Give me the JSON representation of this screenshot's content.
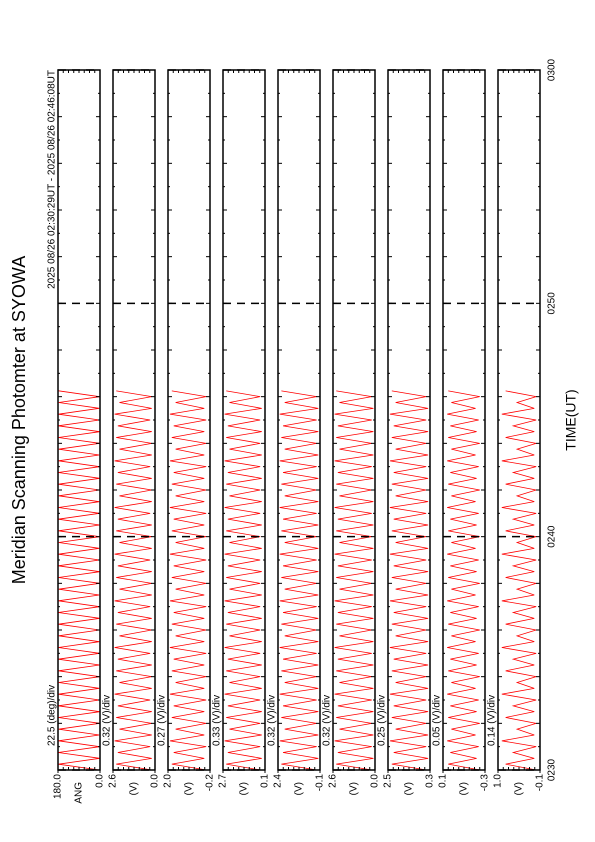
{
  "chart_data": {
    "type": "line",
    "title": "Meridian Scanning Photomter at SYOWA",
    "period": "2025 08/26 02:30:29UT - 2025 08/26 02:46:08UT",
    "x_label": "TIME(UT)",
    "xlim": [
      0,
      30
    ],
    "xticks": [
      {
        "value": 0,
        "label": "0230"
      },
      {
        "value": 10,
        "label": "0240"
      },
      {
        "value": 20,
        "label": "0250"
      },
      {
        "value": 30,
        "label": "0300"
      }
    ],
    "x": [
      0,
      0.25,
      0.5,
      0.75,
      1,
      1.25,
      1.5,
      1.75,
      2,
      2.25,
      2.5,
      2.75,
      3,
      3.25,
      3.5,
      3.75,
      4,
      4.25,
      4.5,
      4.75,
      5,
      5.25,
      5.5,
      5.75,
      6,
      6.25,
      6.5,
      6.75,
      7,
      7.25,
      7.5,
      7.75,
      8,
      8.25,
      8.5,
      8.75,
      9,
      9.25,
      9.5,
      9.75,
      10,
      10.25,
      10.5,
      10.75,
      11,
      11.25,
      11.5,
      11.75,
      12,
      12.25,
      12.5,
      12.75,
      13,
      13.25,
      13.5,
      13.75,
      14,
      14.25,
      14.5,
      14.75,
      15,
      15.25,
      15.5,
      15.75,
      16,
      16.25
    ],
    "series": [
      {
        "label": "ANG",
        "scale": "22.5 (deg)/div",
        "color": "#ff0000",
        "ylim": [
          0,
          180
        ],
        "yticks": [
          {
            "value": 180,
            "label": "180.0"
          },
          {
            "value": 0,
            "label": "0.0"
          }
        ],
        "values": [
          2,
          178,
          1,
          179,
          2,
          178,
          3,
          177,
          2,
          178,
          1,
          179,
          2,
          178,
          3,
          177,
          2,
          178,
          1,
          179,
          2,
          178,
          3,
          177,
          2,
          178,
          1,
          179,
          2,
          178,
          3,
          177,
          2,
          178,
          1,
          179,
          2,
          178,
          3,
          177,
          2,
          178,
          1,
          179,
          2,
          178,
          3,
          177,
          2,
          178,
          1,
          179,
          2,
          178,
          3,
          177,
          2,
          178,
          1,
          179,
          2,
          178,
          3,
          177,
          2,
          178
        ]
      },
      {
        "label": "(V)",
        "scale": "0.32 (V)/div",
        "color": "#ff0000",
        "ylim": [
          0,
          2.6
        ],
        "yticks": [
          2.6,
          {
            "value": 0,
            "label": "0.0"
          }
        ],
        "values": [
          0.2,
          2.4,
          0.2,
          2.3,
          0.3,
          2.5,
          0.2,
          2.2,
          0.2,
          2.4,
          0.2,
          2.3,
          0.3,
          2.5,
          0.2,
          2.2,
          0.2,
          2.4,
          0.2,
          2.3,
          0.3,
          2.5,
          0.2,
          2.2,
          0.2,
          2.4,
          0.2,
          2.3,
          0.3,
          2.5,
          0.2,
          2.2,
          0.2,
          2.4,
          0.2,
          2.3,
          0.3,
          2.5,
          0.2,
          2.2,
          0.2,
          2.4,
          0.2,
          2.3,
          0.3,
          2.5,
          0.2,
          2.2,
          0.2,
          2.4,
          0.2,
          2.3,
          0.3,
          2.5,
          0.2,
          2.2,
          0.2,
          2.4,
          0.2,
          2.3,
          0.3,
          2.5,
          0.2,
          2.2,
          0.2,
          2.4
        ]
      },
      {
        "label": "(V)",
        "scale": "0.27 (V)/div",
        "color": "#ff0000",
        "ylim": [
          -0.2,
          2.0
        ],
        "yticks": [
          {
            "value": 2,
            "label": "2.0"
          },
          -0.2
        ],
        "values": [
          0,
          1.8,
          0.1,
          1.7,
          0,
          1.9,
          0.1,
          1.6,
          0,
          1.8,
          0.1,
          1.7,
          0,
          1.9,
          0.1,
          1.6,
          0,
          1.8,
          0.1,
          1.7,
          0,
          1.9,
          0.1,
          1.6,
          0,
          1.8,
          0.1,
          1.7,
          0,
          1.9,
          0.1,
          1.6,
          0,
          1.8,
          0.1,
          1.7,
          0,
          1.9,
          0.1,
          1.6,
          0,
          1.8,
          0.1,
          1.7,
          0,
          1.9,
          0.1,
          1.6,
          0,
          1.8,
          0.1,
          1.7,
          0,
          1.9,
          0.1,
          1.6,
          0,
          1.8,
          0.1,
          1.7,
          0,
          1.9,
          0.1,
          1.6,
          0,
          1.8
        ]
      },
      {
        "label": "(V)",
        "scale": "0.33 (V)/div",
        "color": "#ff0000",
        "ylim": [
          0.1,
          2.7
        ],
        "yticks": [
          2.7,
          0.1
        ],
        "values": [
          0.4,
          2.5,
          0.3,
          2.4,
          0.4,
          2.6,
          0.3,
          2.3,
          0.4,
          2.5,
          0.3,
          2.4,
          0.4,
          2.6,
          0.3,
          2.3,
          0.4,
          2.5,
          0.3,
          2.4,
          0.4,
          2.6,
          0.3,
          2.3,
          0.4,
          2.5,
          0.3,
          2.4,
          0.4,
          2.6,
          0.3,
          2.3,
          0.4,
          2.5,
          0.3,
          2.4,
          0.4,
          2.6,
          0.3,
          2.3,
          0.4,
          2.5,
          0.3,
          2.4,
          0.4,
          2.6,
          0.3,
          2.3,
          0.4,
          2.5,
          0.3,
          2.4,
          0.4,
          2.6,
          0.3,
          2.3,
          0.4,
          2.5,
          0.3,
          2.4,
          0.4,
          2.6,
          0.3,
          2.3,
          0.4,
          2.5
        ]
      },
      {
        "label": "(V)",
        "scale": "0.32 (V)/div",
        "color": "#ff0000",
        "ylim": [
          -0.1,
          2.4
        ],
        "yticks": [
          2.4,
          -0.1
        ],
        "values": [
          0.1,
          2.2,
          0,
          2.1,
          0.1,
          2.3,
          0,
          2,
          0.1,
          2.2,
          0,
          2.1,
          0.1,
          2.3,
          0,
          2,
          0.1,
          2.2,
          0,
          2.1,
          0.1,
          2.3,
          0,
          2,
          0.1,
          2.2,
          0,
          2.1,
          0.1,
          2.3,
          0,
          2,
          0.1,
          2.2,
          0,
          2.1,
          0.1,
          2.3,
          0,
          2,
          0.1,
          2.2,
          0,
          2.1,
          0.1,
          2.3,
          0,
          2,
          0.1,
          2.2,
          0,
          2.1,
          0.1,
          2.3,
          0,
          2,
          0.1,
          2.2,
          0,
          2.1,
          0.1,
          2.3,
          0,
          2,
          0.1,
          2.2
        ]
      },
      {
        "label": "(V)",
        "scale": "0.32 (V)/div",
        "color": "#ff0000",
        "ylim": [
          0,
          2.6
        ],
        "yticks": [
          2.6,
          {
            "value": 0,
            "label": "0.0"
          }
        ],
        "values": [
          0.2,
          2.4,
          0.1,
          2.3,
          0.2,
          2.5,
          0.1,
          2.2,
          0.2,
          2.4,
          0.1,
          2.3,
          0.2,
          2.5,
          0.1,
          2.2,
          0.2,
          2.4,
          0.1,
          2.3,
          0.2,
          2.5,
          0.1,
          2.2,
          0.2,
          2.4,
          0.1,
          2.3,
          0.2,
          2.5,
          0.1,
          2.2,
          0.2,
          2.4,
          0.1,
          2.3,
          0.2,
          2.5,
          0.1,
          2.2,
          0.2,
          2.4,
          0.1,
          2.3,
          0.2,
          2.5,
          0.1,
          2.2,
          0.2,
          2.4,
          0.1,
          2.3,
          0.2,
          2.5,
          0.1,
          2.2,
          0.2,
          2.4,
          0.1,
          2.3,
          0.2,
          2.5,
          0.1,
          2.2,
          0.2,
          2.4
        ]
      },
      {
        "label": "(V)",
        "scale": "0.25 (V)/div",
        "color": "#ff0000",
        "ylim": [
          0.3,
          2.5
        ],
        "yticks": [
          2.5,
          0.3
        ],
        "values": [
          0.5,
          2.3,
          0.4,
          2.2,
          0.5,
          2.4,
          0.4,
          2.1,
          0.5,
          2.3,
          0.4,
          2.2,
          0.5,
          2.4,
          0.4,
          2.1,
          0.5,
          2.3,
          0.4,
          2.2,
          0.5,
          2.4,
          0.4,
          2.1,
          0.5,
          2.3,
          0.4,
          2.2,
          0.5,
          2.4,
          0.4,
          2.1,
          0.5,
          2.3,
          0.4,
          2.2,
          0.5,
          2.4,
          0.4,
          2.1,
          0.5,
          2.3,
          0.4,
          2.2,
          0.5,
          2.4,
          0.4,
          2.1,
          0.5,
          2.3,
          0.4,
          2.2,
          0.5,
          2.4,
          0.4,
          2.1,
          0.5,
          2.3,
          0.4,
          2.2,
          0.5,
          2.4,
          0.4,
          2.1,
          0.5,
          2.3
        ]
      },
      {
        "label": "(V)",
        "scale": "0.05 (V)/div",
        "color": "#ff0000",
        "ylim": [
          -0.3,
          0.1
        ],
        "yticks": [
          0.1,
          -0.3
        ],
        "values": [
          -0.25,
          0.05,
          -0.22,
          0.03,
          -0.24,
          0.06,
          -0.21,
          0.02,
          -0.25,
          0.05,
          -0.22,
          0.03,
          -0.24,
          0.06,
          -0.21,
          0.02,
          -0.25,
          0.05,
          -0.22,
          0.03,
          -0.24,
          0.06,
          -0.21,
          0.02,
          -0.25,
          0.05,
          -0.22,
          0.03,
          -0.24,
          0.06,
          -0.21,
          0.02,
          -0.25,
          0.05,
          -0.22,
          0.03,
          -0.24,
          0.06,
          -0.21,
          0.02,
          -0.25,
          0.05,
          -0.22,
          0.03,
          -0.24,
          0.06,
          -0.21,
          0.02,
          -0.25,
          0.05,
          -0.22,
          0.03,
          -0.24,
          0.06,
          -0.21,
          0.02,
          -0.25,
          0.05,
          -0.22,
          0.03,
          -0.24,
          0.06,
          -0.21,
          0.02,
          -0.25,
          0.05
        ]
      },
      {
        "label": "(V)",
        "scale": "0.14 (V)/div",
        "color": "#ff0000",
        "ylim": [
          -0.1,
          1.0
        ],
        "yticks": [
          {
            "value": 1,
            "label": "1.0"
          },
          -0.1
        ],
        "values": [
          0,
          0.8,
          0.05,
          0.6,
          0,
          0.9,
          0.05,
          0.5,
          0,
          0.8,
          0.05,
          0.6,
          0,
          0.9,
          0.05,
          0.5,
          0,
          0.8,
          0.05,
          0.6,
          0,
          0.9,
          0.05,
          0.5,
          0,
          0.8,
          0.05,
          0.6,
          0,
          0.9,
          0.05,
          0.5,
          0,
          0.8,
          0.05,
          0.6,
          0,
          0.9,
          0.05,
          0.5,
          0,
          0.8,
          0.05,
          0.6,
          0,
          0.9,
          0.05,
          0.5,
          0,
          0.8,
          0.05,
          0.6,
          0,
          0.9,
          0.05,
          0.5,
          0,
          0.8,
          0.05,
          0.6,
          0,
          0.9,
          0.05,
          0.5,
          0,
          0.8
        ]
      }
    ]
  }
}
